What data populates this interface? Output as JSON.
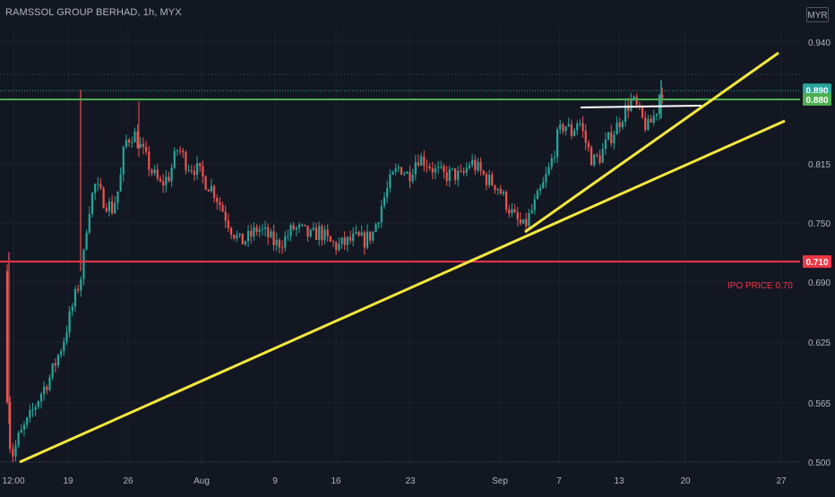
{
  "header": {
    "title": "RAMSSOL GROUP BERHAD, 1h, MYX",
    "currency": "MYR"
  },
  "chart_data": {
    "type": "candlestick",
    "title": "RAMSSOL GROUP BERHAD, 1h, MYX",
    "currency": "MYR",
    "x_tick_labels": [
      "12:00",
      "19",
      "26",
      "Aug",
      "9",
      "16",
      "23",
      "Sep",
      "7",
      "13",
      "20",
      "27"
    ],
    "y_tick_labels": [
      0.94,
      0.88,
      0.815,
      0.75,
      0.69,
      0.625,
      0.565,
      0.5
    ],
    "ylim": [
      0.5,
      0.94
    ],
    "grid": true,
    "price_markers": [
      {
        "label": "0.890",
        "value": 0.89,
        "color": "#26a69a"
      },
      {
        "label": "0.880",
        "value": 0.88,
        "color": "#4caf50"
      },
      {
        "label": "0.710",
        "value": 0.71,
        "color": "#f23645"
      }
    ],
    "horizontal_lines": [
      {
        "value": 0.88,
        "color": "#4caf50"
      },
      {
        "value": 0.71,
        "color": "#f23645"
      }
    ],
    "annotation": {
      "text": "IPO PRICE 0.70",
      "color": "#f23645"
    },
    "colors": {
      "up": "#26a69a",
      "down": "#ef5350",
      "trendline": "#f5e83b",
      "resistance": "#ffffff"
    },
    "price_path": [
      {
        "t": 0,
        "price": 0.7
      },
      {
        "t": 4,
        "price": 0.54
      },
      {
        "t": 8,
        "price": 0.505
      },
      {
        "t": 16,
        "price": 0.525
      },
      {
        "t": 28,
        "price": 0.545
      },
      {
        "t": 40,
        "price": 0.57
      },
      {
        "t": 52,
        "price": 0.59
      },
      {
        "t": 66,
        "price": 0.625
      },
      {
        "t": 76,
        "price": 0.66
      },
      {
        "t": 88,
        "price": 0.7
      },
      {
        "t": 94,
        "price": 0.76
      },
      {
        "t": 102,
        "price": 0.79
      },
      {
        "t": 112,
        "price": 0.775
      },
      {
        "t": 122,
        "price": 0.765
      },
      {
        "t": 130,
        "price": 0.79
      },
      {
        "t": 136,
        "price": 0.835
      },
      {
        "t": 146,
        "price": 0.845
      },
      {
        "t": 156,
        "price": 0.825
      },
      {
        "t": 166,
        "price": 0.805
      },
      {
        "t": 176,
        "price": 0.79
      },
      {
        "t": 186,
        "price": 0.8
      },
      {
        "t": 196,
        "price": 0.83
      },
      {
        "t": 206,
        "price": 0.812
      },
      {
        "t": 216,
        "price": 0.808
      },
      {
        "t": 226,
        "price": 0.795
      },
      {
        "t": 236,
        "price": 0.785
      },
      {
        "t": 246,
        "price": 0.765
      },
      {
        "t": 256,
        "price": 0.745
      },
      {
        "t": 266,
        "price": 0.73
      },
      {
        "t": 276,
        "price": 0.735
      },
      {
        "t": 286,
        "price": 0.745
      },
      {
        "t": 296,
        "price": 0.738
      },
      {
        "t": 306,
        "price": 0.728
      },
      {
        "t": 316,
        "price": 0.733
      },
      {
        "t": 326,
        "price": 0.745
      },
      {
        "t": 336,
        "price": 0.742
      },
      {
        "t": 346,
        "price": 0.736
      },
      {
        "t": 356,
        "price": 0.742
      },
      {
        "t": 366,
        "price": 0.73
      },
      {
        "t": 376,
        "price": 0.726
      },
      {
        "t": 386,
        "price": 0.73
      },
      {
        "t": 396,
        "price": 0.734
      },
      {
        "t": 406,
        "price": 0.732
      },
      {
        "t": 416,
        "price": 0.74
      },
      {
        "t": 426,
        "price": 0.77
      },
      {
        "t": 436,
        "price": 0.795
      },
      {
        "t": 446,
        "price": 0.81
      },
      {
        "t": 456,
        "price": 0.8
      },
      {
        "t": 466,
        "price": 0.82
      },
      {
        "t": 476,
        "price": 0.815
      },
      {
        "t": 486,
        "price": 0.805
      },
      {
        "t": 496,
        "price": 0.8
      },
      {
        "t": 506,
        "price": 0.802
      },
      {
        "t": 516,
        "price": 0.798
      },
      {
        "t": 526,
        "price": 0.815
      },
      {
        "t": 536,
        "price": 0.805
      },
      {
        "t": 546,
        "price": 0.795
      },
      {
        "t": 556,
        "price": 0.79
      },
      {
        "t": 566,
        "price": 0.772
      },
      {
        "t": 576,
        "price": 0.755
      },
      {
        "t": 586,
        "price": 0.745
      },
      {
        "t": 596,
        "price": 0.765
      },
      {
        "t": 606,
        "price": 0.785
      },
      {
        "t": 616,
        "price": 0.81
      },
      {
        "t": 624,
        "price": 0.84
      },
      {
        "t": 632,
        "price": 0.855
      },
      {
        "t": 640,
        "price": 0.845
      },
      {
        "t": 648,
        "price": 0.86
      },
      {
        "t": 656,
        "price": 0.835
      },
      {
        "t": 664,
        "price": 0.815
      },
      {
        "t": 672,
        "price": 0.82
      },
      {
        "t": 680,
        "price": 0.835
      },
      {
        "t": 690,
        "price": 0.85
      },
      {
        "t": 700,
        "price": 0.868
      },
      {
        "t": 708,
        "price": 0.88
      },
      {
        "t": 714,
        "price": 0.87
      },
      {
        "t": 720,
        "price": 0.858
      },
      {
        "t": 726,
        "price": 0.85
      },
      {
        "t": 732,
        "price": 0.86
      },
      {
        "t": 736,
        "price": 0.87
      },
      {
        "t": 740,
        "price": 0.89
      }
    ]
  }
}
